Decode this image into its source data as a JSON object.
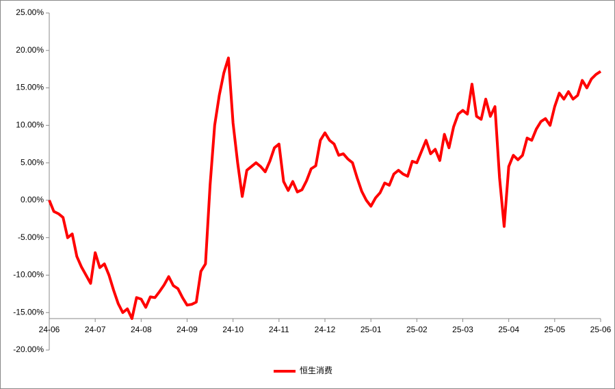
{
  "chart_data": {
    "type": "line",
    "categories": [
      "24-06",
      null,
      null,
      null,
      null,
      null,
      null,
      null,
      null,
      null,
      "24-07",
      null,
      null,
      null,
      null,
      null,
      null,
      null,
      null,
      null,
      "24-08",
      null,
      null,
      null,
      null,
      null,
      null,
      null,
      null,
      null,
      "24-09",
      null,
      null,
      null,
      null,
      null,
      null,
      null,
      null,
      null,
      "24-10",
      null,
      null,
      null,
      null,
      null,
      null,
      null,
      null,
      null,
      "24-11",
      null,
      null,
      null,
      null,
      null,
      null,
      null,
      null,
      null,
      "24-12",
      null,
      null,
      null,
      null,
      null,
      null,
      null,
      null,
      null,
      "25-01",
      null,
      null,
      null,
      null,
      null,
      null,
      null,
      null,
      null,
      "25-02",
      null,
      null,
      null,
      null,
      null,
      null,
      null,
      null,
      null,
      "25-03",
      null,
      null,
      null,
      null,
      null,
      null,
      null,
      null,
      null,
      "25-04",
      null,
      null,
      null,
      null,
      null,
      null,
      null,
      null,
      null,
      "25-05",
      null,
      null,
      null,
      null,
      null,
      null,
      null,
      null,
      null,
      "25-06"
    ],
    "series": [
      {
        "name": "恒生消费",
        "color": "#ff0000",
        "values": [
          0,
          -1.5,
          -1.8,
          -2.3,
          -5,
          -4.5,
          -7.5,
          -8.9,
          -10,
          -11.1,
          -7,
          -9,
          -8.5,
          -10,
          -12,
          -13.8,
          -15,
          -14.5,
          -15.8,
          -13,
          -13.2,
          -14.3,
          -12.9,
          -13,
          -12.2,
          -11.3,
          -10.2,
          -11.4,
          -11.8,
          -13,
          -14,
          -13.9,
          -13.6,
          -9.5,
          -8.5,
          2,
          10,
          14,
          17,
          19,
          10.3,
          5,
          0.5,
          4,
          4.5,
          5,
          4.5,
          3.8,
          5.2,
          7,
          7.5,
          2.5,
          1.3,
          2.5,
          1.1,
          1.4,
          2.6,
          4.2,
          4.6,
          8,
          9,
          8,
          7.5,
          6,
          6.2,
          5.5,
          5,
          3,
          1.2,
          0,
          -0.8,
          0.3,
          1,
          2.3,
          2,
          3.5,
          4,
          3.5,
          3.2,
          5.2,
          5,
          6.5,
          8,
          6.2,
          6.8,
          5.3,
          8.8,
          7,
          9.8,
          11.5,
          12,
          11.5,
          15.5,
          11.2,
          10.8,
          13.5,
          11.2,
          12.5,
          3,
          -3.5,
          4.5,
          6,
          5.4,
          6,
          8.3,
          8,
          9.5,
          10.5,
          10.9,
          10,
          12.5,
          14.3,
          13.5,
          14.5,
          13.5,
          14,
          16,
          15,
          16.2,
          16.8,
          17.2
        ]
      }
    ],
    "ylim": [
      -20,
      25
    ],
    "yticks": [
      {
        "value": -20,
        "label": "-20.00%"
      },
      {
        "value": -15,
        "label": "-15.00%"
      },
      {
        "value": -10,
        "label": "-10.00%"
      },
      {
        "value": -5,
        "label": "-5.00%"
      },
      {
        "value": 0,
        "label": "0.00%"
      },
      {
        "value": 5,
        "label": "5.00%"
      },
      {
        "value": 10,
        "label": "10.00%"
      },
      {
        "value": 15,
        "label": "15.00%"
      },
      {
        "value": 20,
        "label": "20.00%"
      },
      {
        "value": 25,
        "label": "25.00%"
      }
    ],
    "grid": false,
    "legend": "bottom"
  }
}
